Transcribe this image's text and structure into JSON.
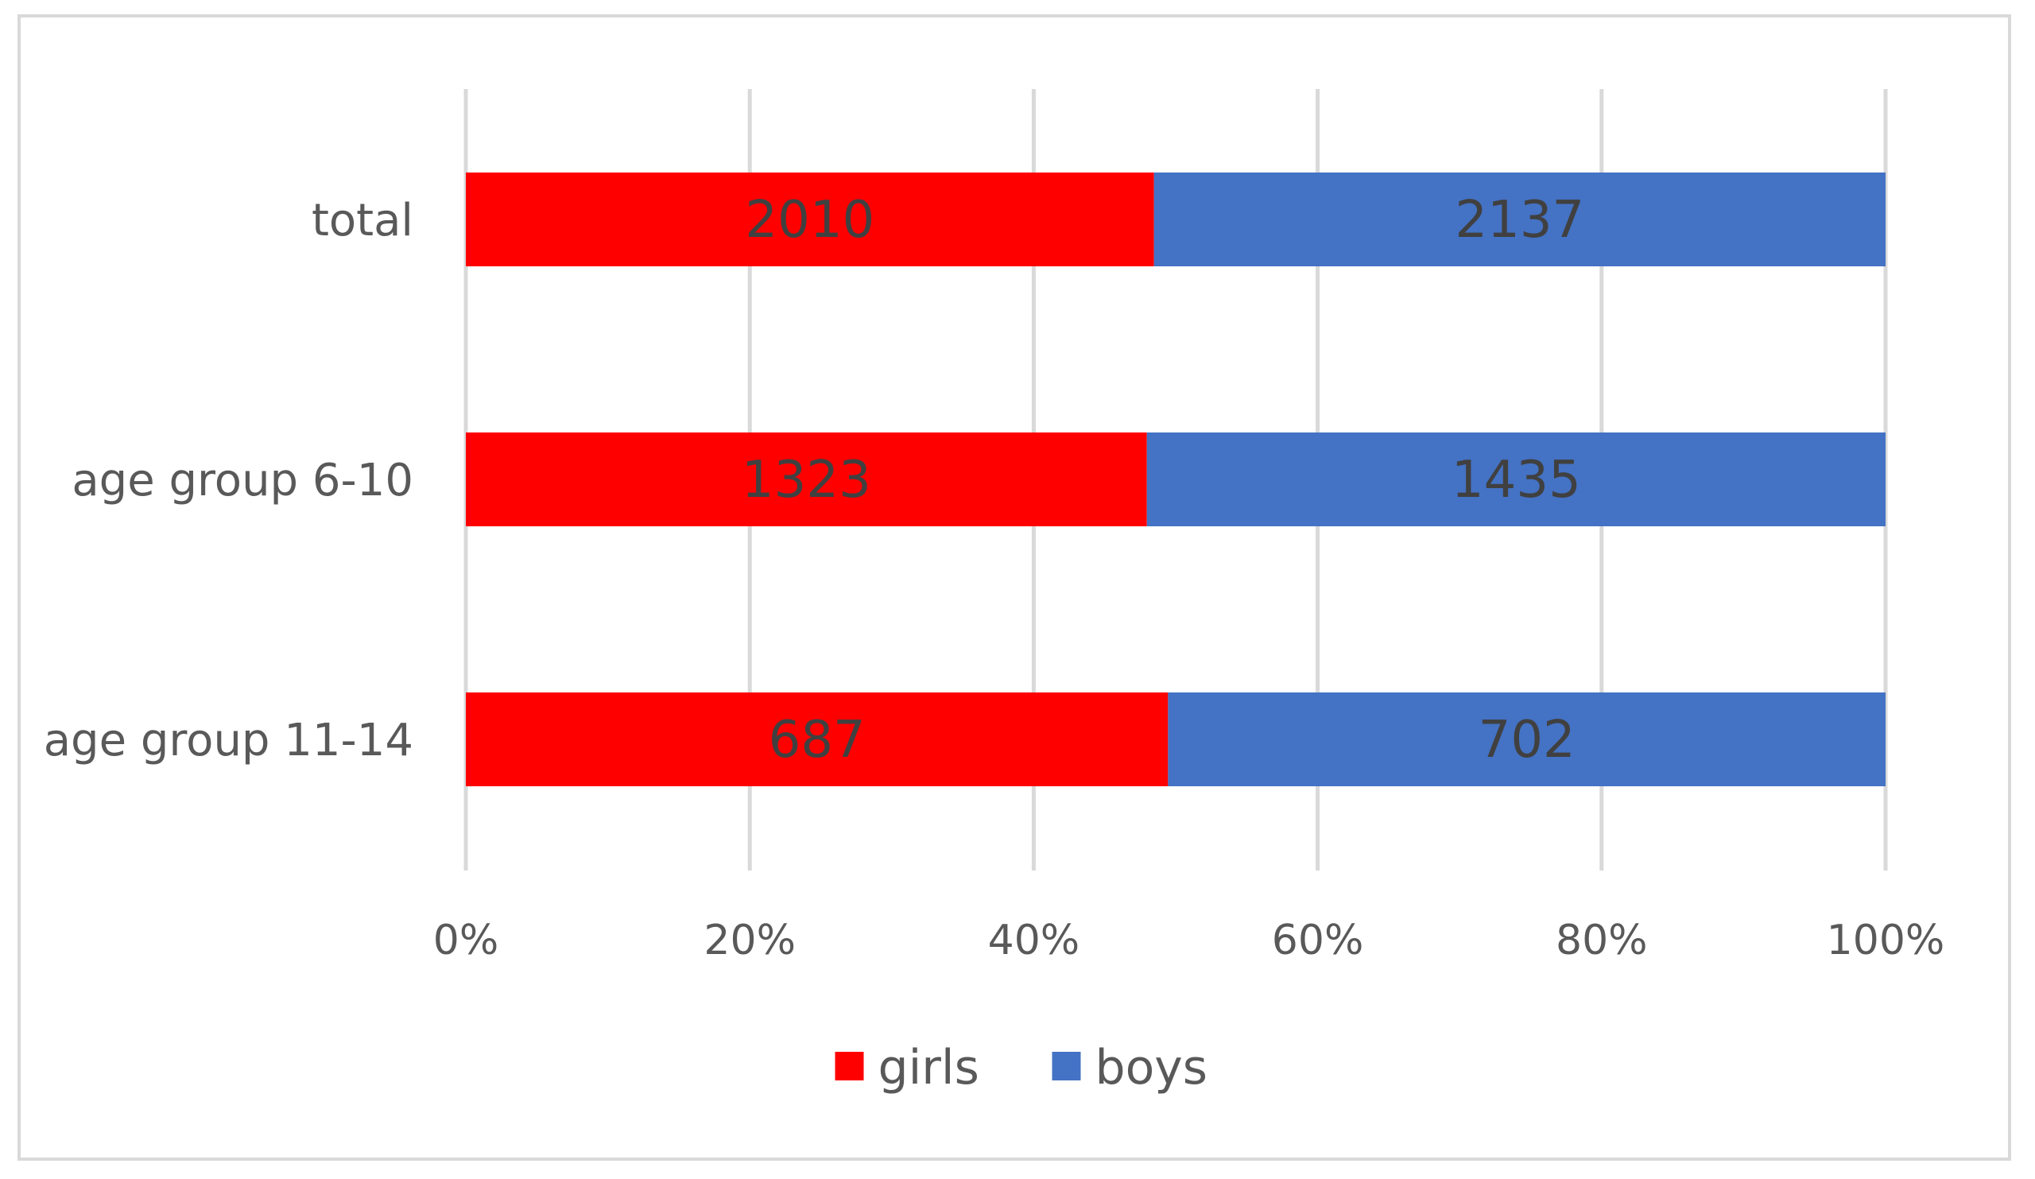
{
  "chart_data": {
    "type": "bar",
    "orientation": "horizontal",
    "stacking": "percent",
    "categories": [
      "total",
      "age group 6-10",
      "age group 11-14"
    ],
    "series": [
      {
        "name": "girls",
        "values": [
          2010,
          1323,
          687
        ],
        "color": "#ff0000"
      },
      {
        "name": "boys",
        "values": [
          2137,
          1435,
          702
        ],
        "color": "#4472c4"
      }
    ],
    "x_ticks": [
      "0%",
      "20%",
      "40%",
      "60%",
      "80%",
      "100%"
    ],
    "xlim": [
      0,
      100
    ],
    "grid": true,
    "legend_position": "bottom"
  }
}
